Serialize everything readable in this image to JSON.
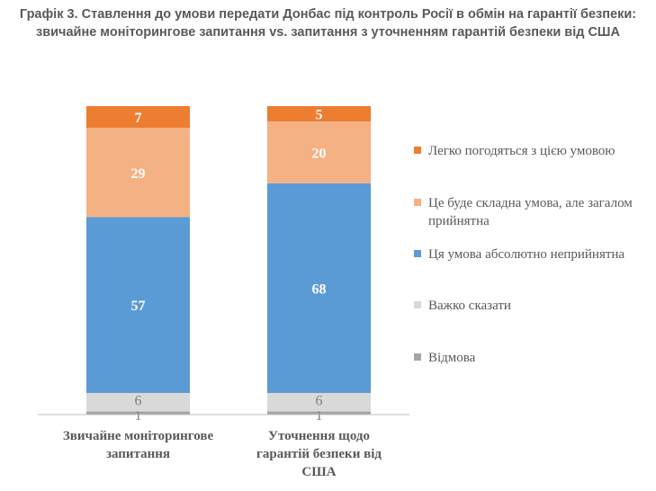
{
  "title": "Графік 3. Ставлення до умови передати Донбас під контроль Росії в обмін на гарантії безпеки: звичайне моніторингове запитання vs. запитання з уточненням гарантій безпеки від США",
  "colors": {
    "easy_agree": "#ED7D31",
    "hard_acceptable": "#F4B183",
    "unacceptable": "#5B9BD5",
    "hard_to_say": "#D9D9D9",
    "refusal": "#A5A5A5",
    "label_light": "#FFFFFF",
    "label_dark": "#7F7F7F"
  },
  "chart_data": {
    "type": "bar",
    "stacked": true,
    "categories": [
      "Звичайне моніторингове запитання",
      "Уточнення щодо гарантій безпеки від США"
    ],
    "series": [
      {
        "name": "Відмова",
        "values": [
          1,
          1
        ]
      },
      {
        "name": "Важко сказати",
        "values": [
          6,
          6
        ]
      },
      {
        "name": "Ця умова абсолютно неприйнятна",
        "values": [
          57,
          68
        ]
      },
      {
        "name": "Це буде складна умова, але загалом прийнятна",
        "values": [
          29,
          20
        ]
      },
      {
        "name": "Легко погодяться з цією умовою",
        "values": [
          7,
          5
        ]
      }
    ],
    "ylim": [
      0,
      100
    ],
    "legend_position": "right",
    "grid": false
  },
  "legend": [
    {
      "label": "Легко погодяться з цією умовою",
      "color_key": "easy_agree"
    },
    {
      "label": "Це буде складна умова, але загалом прийнятна",
      "color_key": "hard_acceptable"
    },
    {
      "label": "Ця умова абсолютно неприйнятна",
      "color_key": "unacceptable"
    },
    {
      "label": "Важко сказати",
      "color_key": "hard_to_say"
    },
    {
      "label": "Відмова",
      "color_key": "refusal"
    }
  ]
}
